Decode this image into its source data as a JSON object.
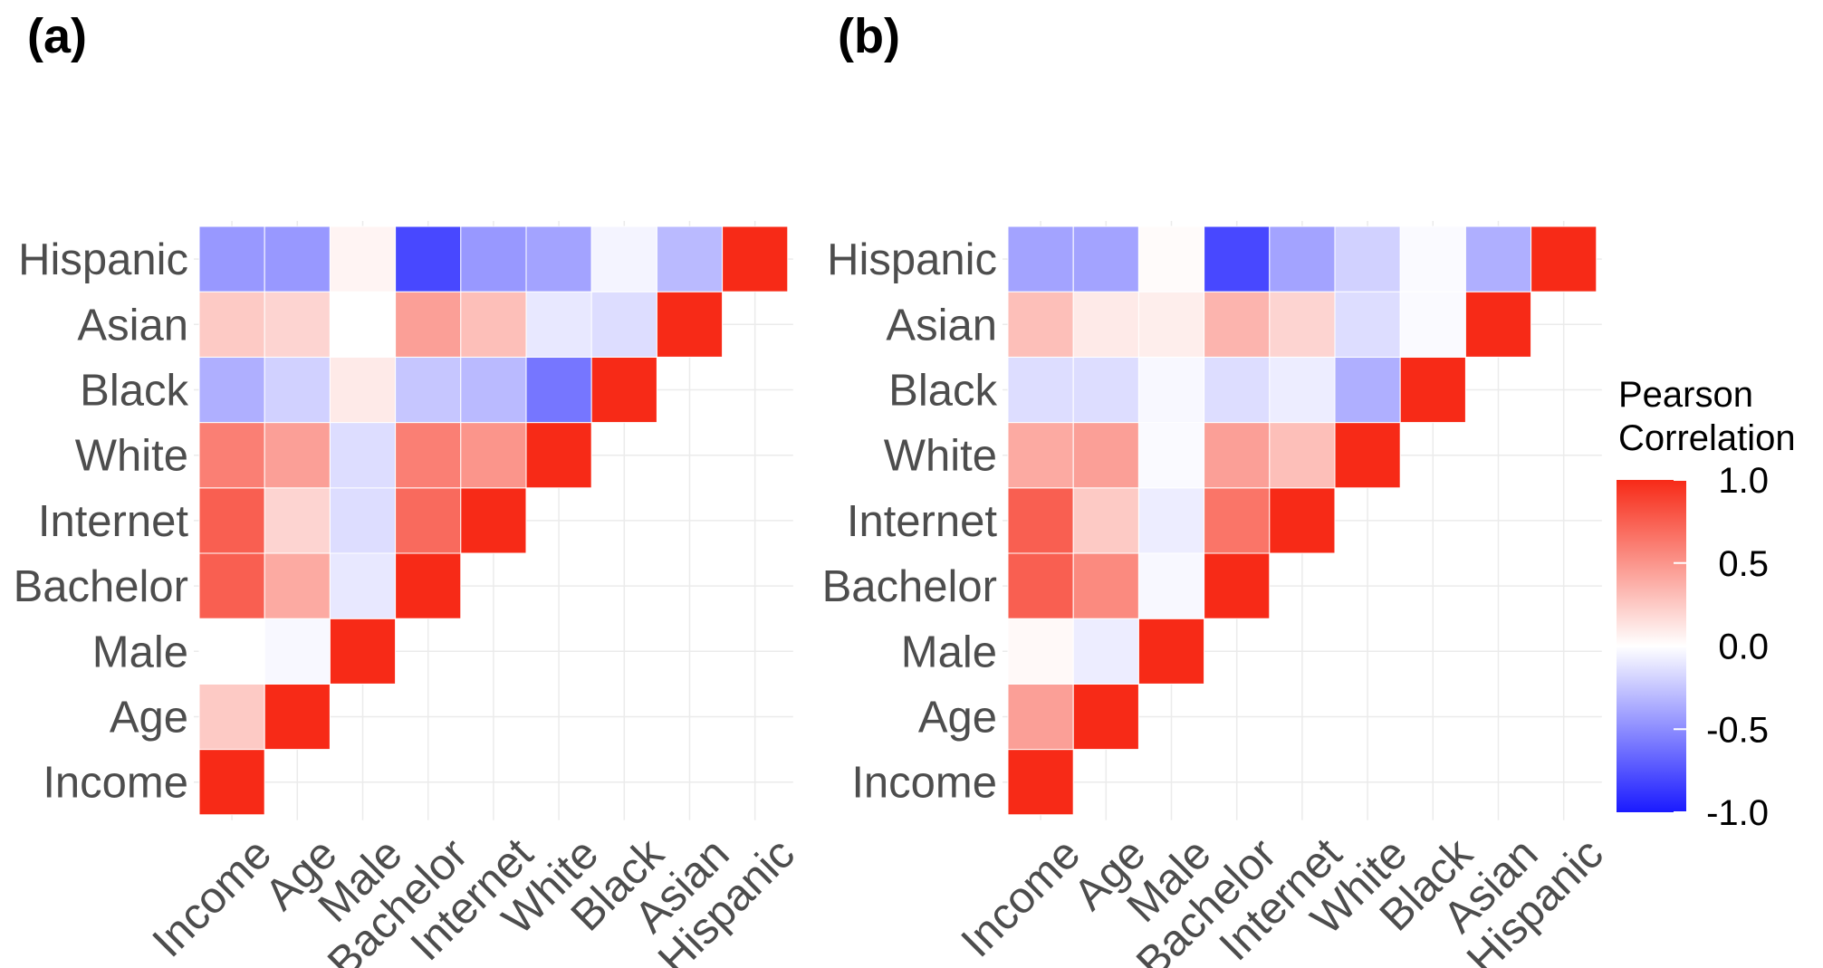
{
  "chart_data": [
    {
      "type": "heatmap",
      "panel_label": "(a)",
      "variables": [
        "Income",
        "Age",
        "Male",
        "Bachelor",
        "Internet",
        "White",
        "Black",
        "Asian",
        "Hispanic"
      ],
      "layout": "lower-triangle, diagonal = 1",
      "matrix": [
        [
          1.0,
          null,
          null,
          null,
          null,
          null,
          null,
          null,
          null
        ],
        [
          0.25,
          1.0,
          null,
          null,
          null,
          null,
          null,
          null,
          null
        ],
        [
          0.0,
          -0.03,
          1.0,
          null,
          null,
          null,
          null,
          null,
          null
        ],
        [
          0.75,
          0.4,
          -0.1,
          1.0,
          null,
          null,
          null,
          null,
          null
        ],
        [
          0.75,
          0.2,
          -0.15,
          0.7,
          1.0,
          null,
          null,
          null,
          null
        ],
        [
          0.6,
          0.45,
          -0.15,
          0.6,
          0.5,
          1.0,
          null,
          null,
          null
        ],
        [
          -0.35,
          -0.2,
          0.1,
          -0.25,
          -0.3,
          -0.6,
          1.0,
          null,
          null
        ],
        [
          0.25,
          0.2,
          0.0,
          0.45,
          0.3,
          -0.1,
          -0.15,
          1.0,
          null
        ],
        [
          -0.45,
          -0.45,
          0.05,
          -0.8,
          -0.45,
          -0.4,
          -0.05,
          -0.3,
          1.0
        ]
      ]
    },
    {
      "type": "heatmap",
      "panel_label": "(b)",
      "variables": [
        "Income",
        "Age",
        "Male",
        "Bachelor",
        "Internet",
        "White",
        "Black",
        "Asian",
        "Hispanic"
      ],
      "layout": "lower-triangle, diagonal = 1",
      "matrix": [
        [
          1.0,
          null,
          null,
          null,
          null,
          null,
          null,
          null,
          null
        ],
        [
          0.45,
          1.0,
          null,
          null,
          null,
          null,
          null,
          null,
          null
        ],
        [
          0.03,
          -0.08,
          1.0,
          null,
          null,
          null,
          null,
          null,
          null
        ],
        [
          0.75,
          0.55,
          -0.03,
          1.0,
          null,
          null,
          null,
          null,
          null
        ],
        [
          0.75,
          0.25,
          -0.08,
          0.65,
          1.0,
          null,
          null,
          null,
          null
        ],
        [
          0.4,
          0.45,
          -0.02,
          0.45,
          0.3,
          1.0,
          null,
          null,
          null
        ],
        [
          -0.15,
          -0.15,
          -0.03,
          -0.15,
          -0.08,
          -0.35,
          1.0,
          null,
          null
        ],
        [
          0.3,
          0.1,
          0.08,
          0.35,
          0.2,
          -0.15,
          -0.02,
          1.0,
          null
        ],
        [
          -0.4,
          -0.4,
          0.02,
          -0.8,
          -0.4,
          -0.2,
          -0.02,
          -0.35,
          1.0
        ]
      ]
    }
  ],
  "legend": {
    "title_line1": "Pearson",
    "title_line2": "Correlation",
    "range": [
      -1.0,
      1.0
    ],
    "ticks": [
      "1.0",
      "0.5",
      "0.0",
      "-0.5",
      "-1.0"
    ],
    "low_color": "#1a1aff",
    "mid_color": "#ffffff",
    "high_color": "#f72a17"
  }
}
